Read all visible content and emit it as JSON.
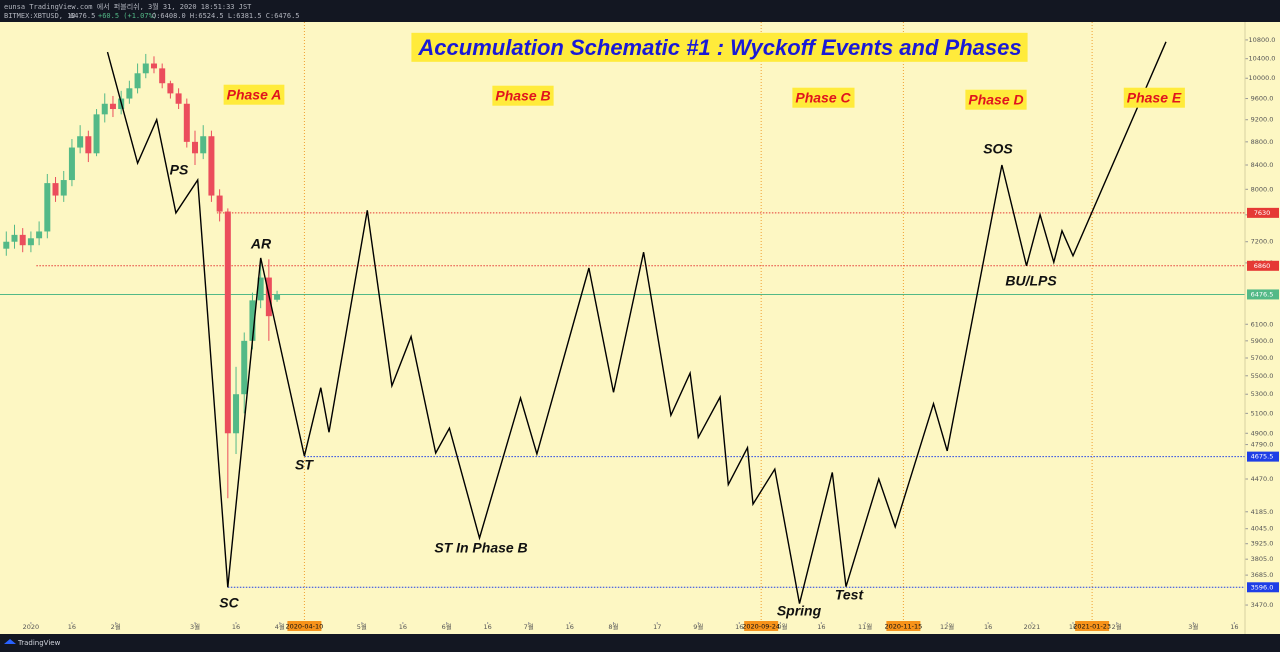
{
  "header": {
    "publisher": "eunsa TradingView.com 에서 퍼블리쉬, 3월 31, 2020 18:51:33 JST",
    "symbol": "BITMEX:XBTUSD, 1D",
    "last": "6476.5",
    "change": "+60.5 (+1.07%)",
    "ohlc": "O:6408.0 H:6524.5 L:6381.5 C:6476.5"
  },
  "footer": {
    "brand": "TradingView"
  },
  "chart_data": [
    {
      "type": "candlestick",
      "title": "Accumulation Schematic #1 : Wyckoff Events and Phases",
      "log_scale": true,
      "up_color": "#53b987",
      "down_color": "#eb4d5c",
      "xlim": [
        -11.3,
        443.9
      ],
      "ylim": [
        3287,
        11196
      ],
      "xticks": [
        {
          "value": 0,
          "label": "2020"
        },
        {
          "value": 15,
          "label": "16"
        },
        {
          "value": 31,
          "label": "2월"
        },
        {
          "value": 60,
          "label": "3월"
        },
        {
          "value": 75,
          "label": "16"
        },
        {
          "value": 91,
          "label": "4월"
        },
        {
          "value": 121,
          "label": "5월"
        },
        {
          "value": 136,
          "label": "16"
        },
        {
          "value": 152,
          "label": "6월"
        },
        {
          "value": 167,
          "label": "16"
        },
        {
          "value": 182,
          "label": "7월"
        },
        {
          "value": 197,
          "label": "16"
        },
        {
          "value": 213,
          "label": "8월"
        },
        {
          "value": 229,
          "label": "17"
        },
        {
          "value": 244,
          "label": "9월"
        },
        {
          "value": 259,
          "label": "16"
        },
        {
          "value": 274,
          "label": "10월"
        },
        {
          "value": 289,
          "label": "16"
        },
        {
          "value": 305,
          "label": "11월"
        },
        {
          "value": 335,
          "label": "12월"
        },
        {
          "value": 350,
          "label": "16"
        },
        {
          "value": 366,
          "label": "2021"
        },
        {
          "value": 381,
          "label": "16"
        },
        {
          "value": 397,
          "label": "2월"
        },
        {
          "value": 425,
          "label": "3월"
        },
        {
          "value": 440,
          "label": "16"
        }
      ],
      "yticks": [
        {
          "value": 10800,
          "label": "10800.0"
        },
        {
          "value": 10400,
          "label": "10400.0"
        },
        {
          "value": 10000,
          "label": "10000.0"
        },
        {
          "value": 9600,
          "label": "9600.0"
        },
        {
          "value": 9200,
          "label": "9200.0"
        },
        {
          "value": 8800,
          "label": "8800.0"
        },
        {
          "value": 8400,
          "label": "8400.0"
        },
        {
          "value": 8000,
          "label": "8000.0"
        },
        {
          "value": 7600,
          "label": "7600.0"
        },
        {
          "value": 7200,
          "label": "7200.0"
        },
        {
          "value": 6900,
          "label": "6900.0"
        },
        {
          "value": 6100,
          "label": "6100.0"
        },
        {
          "value": 5900,
          "label": "5900.0"
        },
        {
          "value": 5700,
          "label": "5700.0"
        },
        {
          "value": 5500,
          "label": "5500.0"
        },
        {
          "value": 5300,
          "label": "5300.0"
        },
        {
          "value": 5100,
          "label": "5100.0"
        },
        {
          "value": 4900,
          "label": "4900.0"
        },
        {
          "value": 4790,
          "label": "4790.0"
        },
        {
          "value": 4470,
          "label": "4470.0"
        },
        {
          "value": 4185,
          "label": "4185.0"
        },
        {
          "value": 4045,
          "label": "4045.0"
        },
        {
          "value": 3925,
          "label": "3925.0"
        },
        {
          "value": 3805,
          "label": "3805.0"
        },
        {
          "value": 3685,
          "label": "3685.0"
        },
        {
          "value": 3470,
          "label": "3470.0"
        }
      ],
      "x": [
        -9,
        -6,
        -3,
        0,
        3,
        6,
        9,
        12,
        15,
        18,
        21,
        24,
        27,
        30,
        33,
        36,
        39,
        42,
        45,
        48,
        51,
        54,
        57,
        60,
        63,
        66,
        69,
        72,
        75,
        78,
        81,
        84,
        87,
        90
      ],
      "open": [
        7100,
        7200,
        7300,
        7150,
        7250,
        7350,
        8100,
        7900,
        8150,
        8700,
        8900,
        8600,
        9300,
        9500,
        9400,
        9600,
        9800,
        10100,
        10300,
        10200,
        9900,
        9700,
        9500,
        8800,
        8600,
        8900,
        7900,
        7650,
        4900,
        5300,
        5900,
        6400,
        6700,
        6408
      ],
      "high": [
        7350,
        7450,
        7400,
        7350,
        7500,
        8250,
        8200,
        8300,
        8850,
        9100,
        9000,
        9400,
        9700,
        9650,
        9750,
        9950,
        10300,
        10500,
        10450,
        10300,
        9950,
        9800,
        9600,
        9000,
        9100,
        9000,
        8000,
        7700,
        5600,
        6000,
        6500,
        6900,
        6950,
        6524.5
      ],
      "low": [
        7000,
        7100,
        7050,
        7050,
        7150,
        7250,
        7800,
        7800,
        8050,
        8600,
        8450,
        8550,
        9150,
        9250,
        9300,
        9500,
        9700,
        10000,
        10100,
        9800,
        9600,
        9400,
        8700,
        8400,
        8500,
        7800,
        7500,
        4300,
        4700,
        5100,
        5800,
        6300,
        5900,
        6381.5
      ],
      "close": [
        7200,
        7300,
        7150,
        7250,
        7350,
        8100,
        7900,
        8150,
        8700,
        8900,
        8600,
        9300,
        9500,
        9400,
        9600,
        9800,
        10100,
        10300,
        10200,
        9900,
        9700,
        9500,
        8800,
        8600,
        8900,
        7900,
        7650,
        4900,
        5300,
        5900,
        6400,
        6700,
        6200,
        6476.5
      ],
      "levels": [
        {
          "value": 7630,
          "from": 68,
          "color": "#e53935"
        },
        {
          "value": 6860,
          "from": 2,
          "color": "#e53935"
        },
        {
          "value": 4675.5,
          "from": 100,
          "color": "#1e3ee6"
        },
        {
          "value": {
            "value": 3596,
            "label": "3596.0"
          },
          "from": 72,
          "color": "#1e3ee6"
        },
        {
          "value": 6476.5,
          "from": -11.3,
          "color": "#53b987"
        }
      ],
      "date_markers": [
        {
          "value": 100,
          "label": "2020-04-10"
        },
        {
          "value": 267,
          "label": "2020-09-24"
        },
        {
          "value": 319,
          "label": "2020-11-15"
        },
        {
          "value": 388,
          "label": "2021-01-23"
        }
      ],
      "phases": [
        "Phase A",
        "Phase B",
        "Phase C",
        "Phase D",
        "Phase E"
      ],
      "events": [
        "PS",
        "AR",
        "SC",
        "ST",
        "ST In Phase B",
        "Spring",
        "Test",
        "SOS",
        "BU/LPS"
      ]
    },
    {
      "type": "line",
      "color": "#000000",
      "xlim": [
        -11.3,
        443.9
      ],
      "ylim": [
        3287,
        11196
      ],
      "x": [
        28,
        39,
        46,
        53,
        61,
        72,
        84,
        100,
        106,
        109,
        123,
        132,
        139,
        148,
        153,
        164,
        179,
        185,
        204,
        213,
        224,
        234,
        241,
        244,
        252,
        255,
        262,
        264,
        272,
        281,
        293,
        298,
        310,
        316,
        330,
        335,
        355,
        364,
        369,
        374,
        377,
        381,
        415
      ],
      "values": [
        10540,
        8430,
        9200,
        7630,
        8150,
        3596,
        6970,
        4680,
        5370,
        4910,
        7670,
        5390,
        5950,
        4710,
        4950,
        3970,
        5260,
        4700,
        6830,
        5320,
        7050,
        5080,
        5530,
        4860,
        5270,
        4420,
        4760,
        4250,
        4560,
        3480,
        4530,
        3600,
        4470,
        4060,
        5200,
        4730,
        8400,
        6860,
        7600,
        6910,
        7360,
        7000,
        10760
      ]
    }
  ]
}
